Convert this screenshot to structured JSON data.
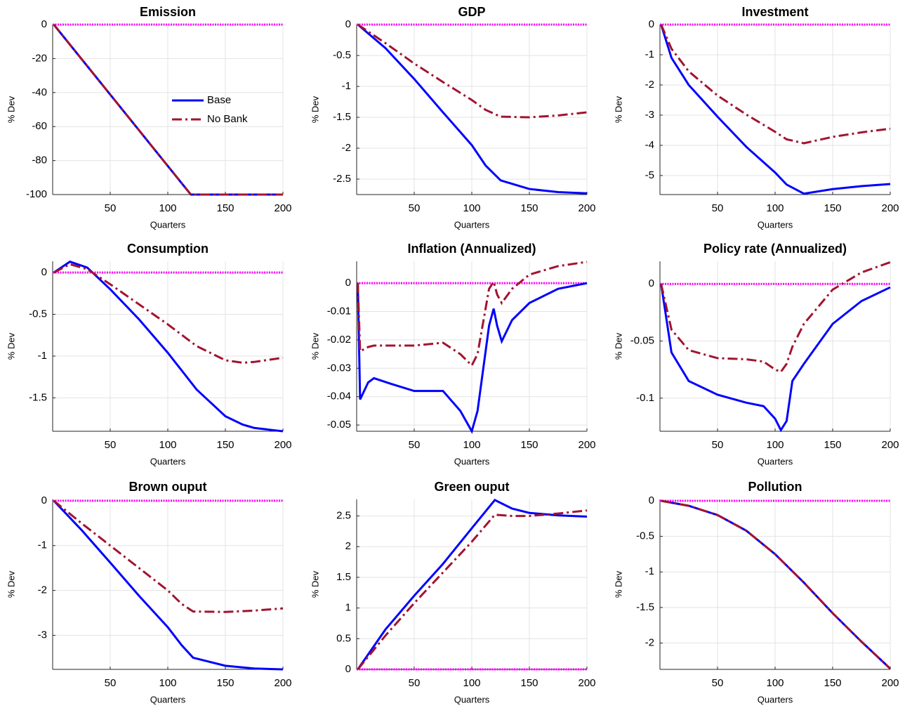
{
  "chart_data": [
    {
      "type": "line",
      "title": "Emission",
      "xlabel": "Quarters",
      "ylabel": "% Dev",
      "grid": true,
      "legend": "right",
      "x": [
        1,
        120,
        150,
        200
      ],
      "xlim": [
        0,
        200
      ],
      "xticks": [
        50,
        100,
        150,
        200
      ],
      "ylim": [
        -100,
        0
      ],
      "yticks": [
        -100,
        -80,
        -60,
        -40,
        -20,
        0
      ],
      "zero_line": {
        "value": 0,
        "color": "#ff00ff"
      },
      "series": [
        {
          "name": "Base",
          "color": "#0000ff",
          "style": "solid",
          "values": [
            0,
            -100,
            -100,
            -100
          ]
        },
        {
          "name": "No Bank",
          "color": "#a2142f",
          "style": "dash-dot",
          "values": [
            0,
            -100,
            -100,
            -100
          ]
        }
      ]
    },
    {
      "type": "line",
      "title": "GDP",
      "xlabel": "Quarters",
      "ylabel": "% Dev",
      "grid": true,
      "x": [
        1,
        25,
        50,
        75,
        100,
        112,
        125,
        150,
        175,
        200
      ],
      "xlim": [
        0,
        200
      ],
      "xticks": [
        50,
        100,
        150,
        200
      ],
      "ylim": [
        -2.75,
        0
      ],
      "yticks": [
        -2.5,
        -2,
        -1.5,
        -1,
        -0.5,
        0
      ],
      "zero_line": {
        "value": 0,
        "color": "#ff00ff"
      },
      "series": [
        {
          "color": "#0000ff",
          "style": "solid",
          "values": [
            0,
            -0.38,
            -0.88,
            -1.42,
            -1.95,
            -2.28,
            -2.52,
            -2.66,
            -2.71,
            -2.73
          ]
        },
        {
          "color": "#a2142f",
          "style": "dash-dot",
          "values": [
            0,
            -0.3,
            -0.63,
            -0.93,
            -1.22,
            -1.38,
            -1.49,
            -1.5,
            -1.47,
            -1.42
          ]
        }
      ]
    },
    {
      "type": "line",
      "title": "Investment",
      "xlabel": "Quarters",
      "ylabel": "% Dev",
      "grid": true,
      "x": [
        1,
        10,
        25,
        50,
        75,
        100,
        110,
        125,
        150,
        175,
        200
      ],
      "xlim": [
        0,
        200
      ],
      "xticks": [
        50,
        100,
        150,
        200
      ],
      "ylim": [
        -5.63,
        0
      ],
      "yticks": [
        -5,
        -4,
        -3,
        -2,
        -1,
        0
      ],
      "zero_line": {
        "value": 0,
        "color": "#ff00ff"
      },
      "series": [
        {
          "color": "#0000ff",
          "style": "solid",
          "values": [
            0,
            -1.1,
            -2.0,
            -3.05,
            -4.05,
            -4.9,
            -5.3,
            -5.6,
            -5.45,
            -5.35,
            -5.28
          ]
        },
        {
          "color": "#a2142f",
          "style": "dash-dot",
          "values": [
            0,
            -0.8,
            -1.55,
            -2.35,
            -2.98,
            -3.55,
            -3.8,
            -3.93,
            -3.72,
            -3.57,
            -3.45
          ]
        }
      ]
    },
    {
      "type": "line",
      "title": "Consumption",
      "xlabel": "Quarters",
      "ylabel": "% Dev",
      "grid": true,
      "x": [
        1,
        15,
        30,
        50,
        75,
        100,
        125,
        150,
        165,
        175,
        200
      ],
      "xlim": [
        0,
        200
      ],
      "xticks": [
        50,
        100,
        150,
        200
      ],
      "ylim": [
        -1.9,
        0.135
      ],
      "yticks": [
        -1.5,
        -1,
        -0.5,
        0
      ],
      "zero_line": {
        "value": 0,
        "color": "#ff00ff"
      },
      "series": [
        {
          "color": "#0000ff",
          "style": "solid",
          "values": [
            0,
            0.13,
            0.06,
            -0.2,
            -0.56,
            -0.96,
            -1.4,
            -1.72,
            -1.82,
            -1.86,
            -1.9
          ]
        },
        {
          "color": "#a2142f",
          "style": "dash-dot",
          "values": [
            0,
            0.1,
            0.04,
            -0.14,
            -0.38,
            -0.62,
            -0.88,
            -1.05,
            -1.08,
            -1.07,
            -1.02
          ]
        }
      ]
    },
    {
      "type": "line",
      "title": "Inflation (Annualized)",
      "xlabel": "Quarters",
      "ylabel": "% Dev",
      "grid": true,
      "x": [
        1,
        3,
        10,
        15,
        30,
        50,
        75,
        90,
        100,
        105,
        115,
        119,
        122,
        126,
        135,
        150,
        175,
        200
      ],
      "xlim": [
        0,
        200
      ],
      "xticks": [
        50,
        100,
        150,
        200
      ],
      "ylim": [
        -0.0522,
        0.0077
      ],
      "yticks": [
        -0.05,
        -0.04,
        -0.03,
        -0.02,
        -0.01,
        0
      ],
      "zero_line": {
        "value": 0,
        "color": "#ff00ff"
      },
      "series": [
        {
          "color": "#0000ff",
          "style": "solid",
          "values": [
            0,
            -0.041,
            -0.035,
            -0.0335,
            -0.0355,
            -0.038,
            -0.038,
            -0.045,
            -0.0522,
            -0.045,
            -0.015,
            -0.009,
            -0.015,
            -0.0205,
            -0.013,
            -0.007,
            -0.002,
            0
          ]
        },
        {
          "color": "#a2142f",
          "style": "dash-dot",
          "values": [
            0,
            -0.024,
            -0.0225,
            -0.022,
            -0.022,
            -0.022,
            -0.021,
            -0.025,
            -0.029,
            -0.025,
            -0.002,
            0.0005,
            -0.004,
            -0.007,
            -0.002,
            0.003,
            0.006,
            0.0075
          ]
        }
      ]
    },
    {
      "type": "line",
      "title": "Policy rate (Annualized)",
      "xlabel": "Quarters",
      "ylabel": "% Dev",
      "grid": true,
      "x": [
        1,
        10,
        25,
        50,
        75,
        90,
        100,
        105,
        110,
        115,
        125,
        150,
        175,
        200
      ],
      "xlim": [
        0,
        200
      ],
      "xticks": [
        50,
        100,
        150,
        200
      ],
      "ylim": [
        -0.129,
        0.0198
      ],
      "yticks": [
        -0.1,
        -0.05,
        0
      ],
      "zero_line": {
        "value": 0,
        "color": "#ff00ff"
      },
      "series": [
        {
          "color": "#0000ff",
          "style": "solid",
          "values": [
            0,
            -0.06,
            -0.085,
            -0.097,
            -0.104,
            -0.107,
            -0.118,
            -0.128,
            -0.12,
            -0.085,
            -0.07,
            -0.035,
            -0.015,
            -0.003
          ]
        },
        {
          "color": "#a2142f",
          "style": "dash-dot",
          "values": [
            0,
            -0.04,
            -0.058,
            -0.065,
            -0.066,
            -0.068,
            -0.075,
            -0.077,
            -0.07,
            -0.055,
            -0.035,
            -0.005,
            0.01,
            0.019
          ]
        }
      ]
    },
    {
      "type": "line",
      "title": "Brown ouput",
      "xlabel": "Quarters",
      "ylabel": "% Dev",
      "grid": true,
      "x": [
        1,
        25,
        50,
        75,
        100,
        112,
        122,
        150,
        175,
        200
      ],
      "xlim": [
        0,
        200
      ],
      "xticks": [
        50,
        100,
        150,
        200
      ],
      "ylim": [
        -3.76,
        0.03
      ],
      "yticks": [
        -3,
        -2,
        -1,
        0
      ],
      "zero_line": {
        "value": 0,
        "color": "#ff00ff"
      },
      "series": [
        {
          "color": "#0000ff",
          "style": "solid",
          "values": [
            0,
            -0.65,
            -1.38,
            -2.12,
            -2.82,
            -3.22,
            -3.5,
            -3.68,
            -3.74,
            -3.76
          ]
        },
        {
          "color": "#a2142f",
          "style": "dash-dot",
          "values": [
            0,
            -0.5,
            -1.0,
            -1.5,
            -2.0,
            -2.3,
            -2.47,
            -2.48,
            -2.45,
            -2.4
          ]
        }
      ]
    },
    {
      "type": "line",
      "title": "Green ouput",
      "xlabel": "Quarters",
      "ylabel": "% Dev",
      "grid": true,
      "x": [
        1,
        25,
        50,
        75,
        100,
        120,
        135,
        150,
        175,
        200
      ],
      "xlim": [
        0,
        200
      ],
      "xticks": [
        50,
        100,
        150,
        200
      ],
      "ylim": [
        0,
        2.77
      ],
      "yticks": [
        0,
        0.5,
        1,
        1.5,
        2,
        2.5
      ],
      "zero_line": {
        "value": 0,
        "color": "#ff00ff"
      },
      "series": [
        {
          "color": "#0000ff",
          "style": "solid",
          "values": [
            0,
            0.65,
            1.2,
            1.72,
            2.3,
            2.76,
            2.62,
            2.55,
            2.51,
            2.49
          ]
        },
        {
          "color": "#a2142f",
          "style": "dash-dot",
          "values": [
            0,
            0.55,
            1.08,
            1.58,
            2.08,
            2.52,
            2.5,
            2.5,
            2.54,
            2.59
          ]
        }
      ]
    },
    {
      "type": "line",
      "title": "Pollution",
      "xlabel": "Quarters",
      "ylabel": "% Dev",
      "grid": true,
      "x": [
        1,
        25,
        50,
        75,
        100,
        125,
        150,
        175,
        200
      ],
      "xlim": [
        0,
        200
      ],
      "xticks": [
        50,
        100,
        150,
        200
      ],
      "ylim": [
        -2.37,
        0.02
      ],
      "yticks": [
        -2,
        -1.5,
        -1,
        -0.5,
        0
      ],
      "zero_line": {
        "value": 0,
        "color": "#ff00ff"
      },
      "series": [
        {
          "color": "#0000ff",
          "style": "solid",
          "values": [
            0,
            -0.07,
            -0.2,
            -0.42,
            -0.75,
            -1.15,
            -1.58,
            -1.98,
            -2.36
          ]
        },
        {
          "color": "#a2142f",
          "style": "dash-dot",
          "values": [
            0,
            -0.07,
            -0.2,
            -0.42,
            -0.75,
            -1.15,
            -1.58,
            -1.98,
            -2.36
          ]
        }
      ]
    }
  ]
}
